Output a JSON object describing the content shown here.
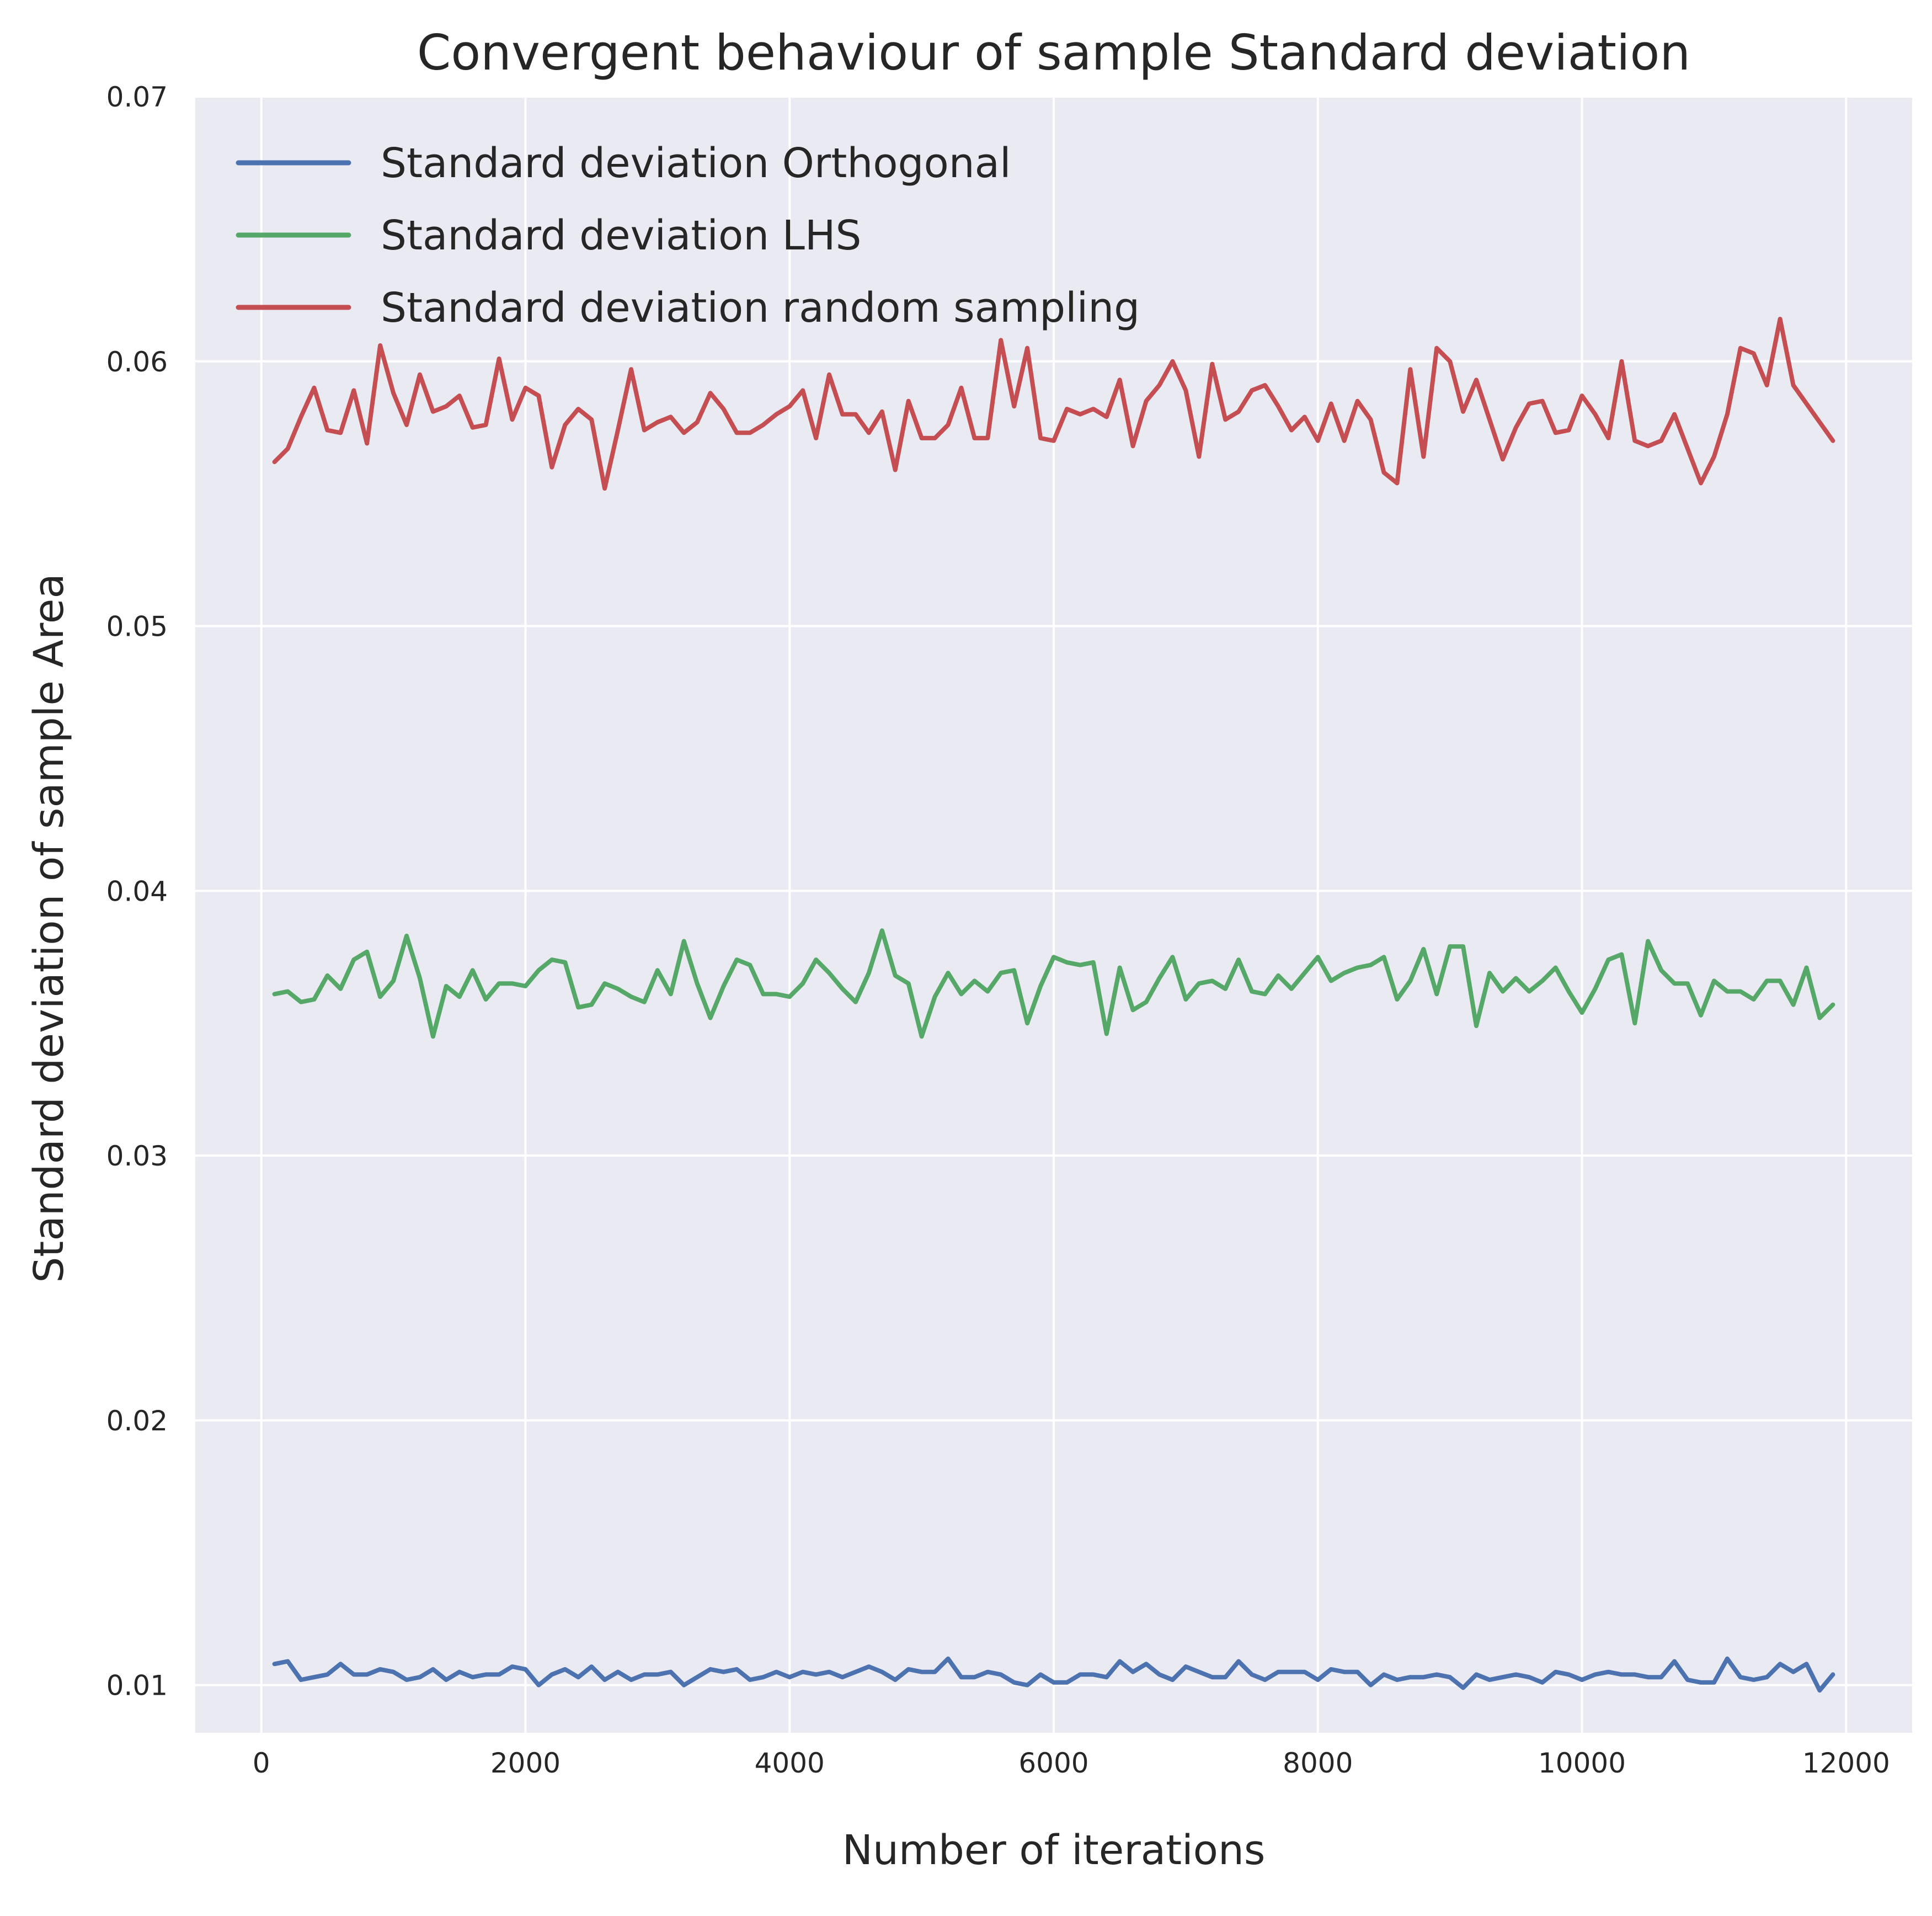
{
  "chart_data": {
    "type": "line",
    "title": "Convergent behaviour of sample Standard deviation",
    "xlabel": "Number of iterations",
    "ylabel": "Standard deviation of sample Area",
    "xlim": [
      -500,
      12500
    ],
    "ylim": [
      0.0082,
      0.07
    ],
    "xticks": [
      0,
      2000,
      4000,
      6000,
      8000,
      10000,
      12000
    ],
    "xtick_labels": [
      "0",
      "2000",
      "4000",
      "6000",
      "8000",
      "10000",
      "12000"
    ],
    "yticks": [
      0.01,
      0.02,
      0.03,
      0.04,
      0.05,
      0.06,
      0.07
    ],
    "ytick_labels": [
      "0.01",
      "0.02",
      "0.03",
      "0.04",
      "0.05",
      "0.06",
      "0.07"
    ],
    "grid": true,
    "legend_position": "upper-left",
    "background_color": "#eaeaf2",
    "grid_color": "#ffffff",
    "x": [
      100,
      200,
      300,
      400,
      500,
      600,
      700,
      800,
      900,
      1000,
      1100,
      1200,
      1300,
      1400,
      1500,
      1600,
      1700,
      1800,
      1900,
      2000,
      2100,
      2200,
      2300,
      2400,
      2500,
      2600,
      2700,
      2800,
      2900,
      3000,
      3100,
      3200,
      3300,
      3400,
      3500,
      3600,
      3700,
      3800,
      3900,
      4000,
      4100,
      4200,
      4300,
      4400,
      4500,
      4600,
      4700,
      4800,
      4900,
      5000,
      5100,
      5200,
      5300,
      5400,
      5500,
      5600,
      5700,
      5800,
      5900,
      6000,
      6100,
      6200,
      6300,
      6400,
      6500,
      6600,
      6700,
      6800,
      6900,
      7000,
      7100,
      7200,
      7300,
      7400,
      7500,
      7600,
      7700,
      7800,
      7900,
      8000,
      8100,
      8200,
      8300,
      8400,
      8500,
      8600,
      8700,
      8800,
      8900,
      9000,
      9100,
      9200,
      9300,
      9400,
      9500,
      9600,
      9700,
      9800,
      9900,
      10000,
      10100,
      10200,
      10300,
      10400,
      10500,
      10600,
      10700,
      10800,
      10900,
      11000,
      11100,
      11200,
      11300,
      11400,
      11500,
      11600,
      11700,
      11800,
      11900
    ],
    "series": [
      {
        "name": "Standard deviation Orthogonal",
        "color": "#4c72b0",
        "values": [
          0.0108,
          0.0109,
          0.0102,
          0.0103,
          0.0104,
          0.0108,
          0.0104,
          0.0104,
          0.0106,
          0.0105,
          0.0102,
          0.0103,
          0.0106,
          0.0102,
          0.0105,
          0.0103,
          0.0104,
          0.0104,
          0.0107,
          0.0106,
          0.01,
          0.0104,
          0.0106,
          0.0103,
          0.0107,
          0.0102,
          0.0105,
          0.0102,
          0.0104,
          0.0104,
          0.0105,
          0.01,
          0.0103,
          0.0106,
          0.0105,
          0.0106,
          0.0102,
          0.0103,
          0.0105,
          0.0103,
          0.0105,
          0.0104,
          0.0105,
          0.0103,
          0.0105,
          0.0107,
          0.0105,
          0.0102,
          0.0106,
          0.0105,
          0.0105,
          0.011,
          0.0103,
          0.0103,
          0.0105,
          0.0104,
          0.0101,
          0.01,
          0.0104,
          0.0101,
          0.0101,
          0.0104,
          0.0104,
          0.0103,
          0.0109,
          0.0105,
          0.0108,
          0.0104,
          0.0102,
          0.0107,
          0.0105,
          0.0103,
          0.0103,
          0.0109,
          0.0104,
          0.0102,
          0.0105,
          0.0105,
          0.0105,
          0.0102,
          0.0106,
          0.0105,
          0.0105,
          0.01,
          0.0104,
          0.0102,
          0.0103,
          0.0103,
          0.0104,
          0.0103,
          0.0099,
          0.0104,
          0.0102,
          0.0103,
          0.0104,
          0.0103,
          0.0101,
          0.0105,
          0.0104,
          0.0102,
          0.0104,
          0.0105,
          0.0104,
          0.0104,
          0.0103,
          0.0103,
          0.0109,
          0.0102,
          0.0101,
          0.0101,
          0.011,
          0.0103,
          0.0102,
          0.0103,
          0.0108,
          0.0105,
          0.0108,
          0.0098,
          0.0104
        ]
      },
      {
        "name": "Standard deviation LHS",
        "color": "#55a868",
        "values": [
          0.0361,
          0.0362,
          0.0358,
          0.0359,
          0.0368,
          0.0363,
          0.0374,
          0.0377,
          0.036,
          0.0366,
          0.0383,
          0.0367,
          0.0345,
          0.0364,
          0.036,
          0.037,
          0.0359,
          0.0365,
          0.0365,
          0.0364,
          0.037,
          0.0374,
          0.0373,
          0.0356,
          0.0357,
          0.0365,
          0.0363,
          0.036,
          0.0358,
          0.037,
          0.0361,
          0.0381,
          0.0365,
          0.0352,
          0.0364,
          0.0374,
          0.0372,
          0.0361,
          0.0361,
          0.036,
          0.0365,
          0.0374,
          0.0369,
          0.0363,
          0.0358,
          0.0369,
          0.0385,
          0.0368,
          0.0365,
          0.0345,
          0.036,
          0.0369,
          0.0361,
          0.0366,
          0.0362,
          0.0369,
          0.037,
          0.035,
          0.0364,
          0.0375,
          0.0373,
          0.0372,
          0.0373,
          0.0346,
          0.0371,
          0.0355,
          0.0358,
          0.0367,
          0.0375,
          0.0359,
          0.0365,
          0.0366,
          0.0363,
          0.0374,
          0.0362,
          0.0361,
          0.0368,
          0.0363,
          0.0369,
          0.0375,
          0.0366,
          0.0369,
          0.0371,
          0.0372,
          0.0375,
          0.0359,
          0.0366,
          0.0378,
          0.0361,
          0.0379,
          0.0379,
          0.0349,
          0.0369,
          0.0362,
          0.0367,
          0.0362,
          0.0366,
          0.0371,
          0.0362,
          0.0354,
          0.0363,
          0.0374,
          0.0376,
          0.035,
          0.0381,
          0.037,
          0.0365,
          0.0365,
          0.0353,
          0.0366,
          0.0362,
          0.0362,
          0.0359,
          0.0366,
          0.0366,
          0.0357,
          0.0371,
          0.0352,
          0.0357
        ]
      },
      {
        "name": "Standard deviation random sampling",
        "color": "#c44e52",
        "values": [
          0.0562,
          0.0567,
          0.0579,
          0.059,
          0.0574,
          0.0573,
          0.0589,
          0.0569,
          0.0606,
          0.0588,
          0.0576,
          0.0595,
          0.0581,
          0.0583,
          0.0587,
          0.0575,
          0.0576,
          0.0601,
          0.0578,
          0.059,
          0.0587,
          0.056,
          0.0576,
          0.0582,
          0.0578,
          0.0552,
          0.0574,
          0.0597,
          0.0574,
          0.0577,
          0.0579,
          0.0573,
          0.0577,
          0.0588,
          0.0582,
          0.0573,
          0.0573,
          0.0576,
          0.058,
          0.0583,
          0.0589,
          0.0571,
          0.0595,
          0.058,
          0.058,
          0.0573,
          0.0581,
          0.0559,
          0.0585,
          0.0571,
          0.0571,
          0.0576,
          0.059,
          0.0571,
          0.0571,
          0.0608,
          0.0583,
          0.0605,
          0.0571,
          0.057,
          0.0582,
          0.058,
          0.0582,
          0.0579,
          0.0593,
          0.0568,
          0.0585,
          0.0591,
          0.06,
          0.0589,
          0.0564,
          0.0599,
          0.0578,
          0.0581,
          0.0589,
          0.0591,
          0.0583,
          0.0574,
          0.0579,
          0.057,
          0.0584,
          0.057,
          0.0585,
          0.0578,
          0.0558,
          0.0554,
          0.0597,
          0.0564,
          0.0605,
          0.06,
          0.0581,
          0.0593,
          0.0578,
          0.0563,
          0.0575,
          0.0584,
          0.0585,
          0.0573,
          0.0574,
          0.0587,
          0.058,
          0.0571,
          0.06,
          0.057,
          0.0568,
          0.057,
          0.058,
          0.0567,
          0.0554,
          0.0564,
          0.058,
          0.0605,
          0.0603,
          0.0591,
          0.0616,
          0.0591,
          0.0584,
          0.0577,
          0.057
        ]
      }
    ]
  }
}
